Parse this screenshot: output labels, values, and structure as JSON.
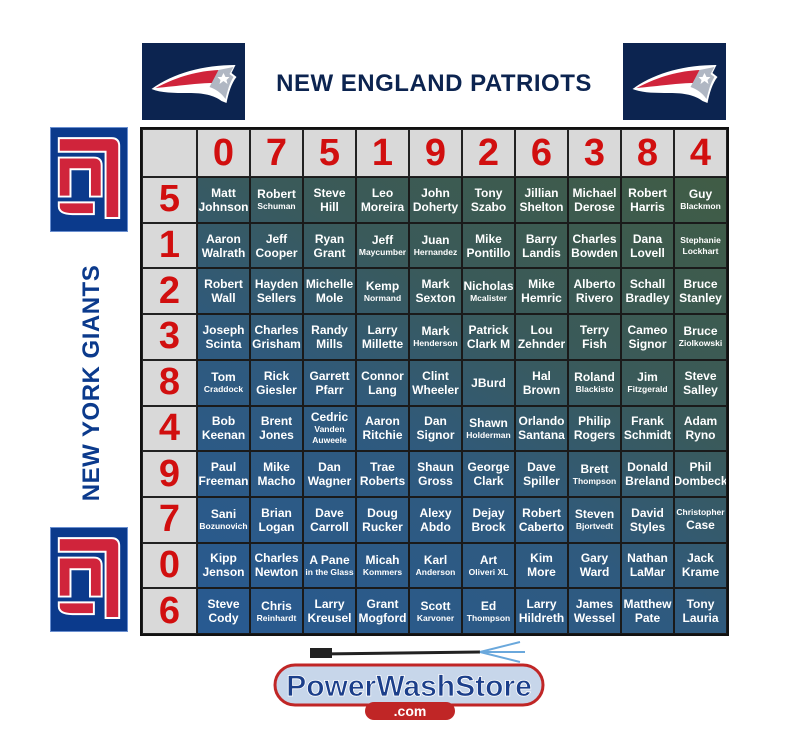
{
  "title": "NEW ENGLAND PATRIOTS",
  "side_title": "NEW YORK GIANTS",
  "logos": {
    "top": "patriots-logo",
    "side": "giants-ny-logo",
    "sponsor": "PowerWashStore",
    "sponsor_sub": ".com"
  },
  "colors": {
    "digits": "#d10f0f",
    "navy": "#0c2450",
    "giants_blue": "#0b3a8c",
    "cell_blue": "#285a92",
    "cell_green": "#405c45"
  },
  "grid": {
    "col_digits": [
      "0",
      "7",
      "5",
      "1",
      "9",
      "2",
      "6",
      "3",
      "8",
      "4"
    ],
    "row_digits": [
      "5",
      "1",
      "2",
      "3",
      "8",
      "4",
      "9",
      "7",
      "0",
      "6"
    ],
    "rows": [
      [
        {
          "lines": [
            "Matt",
            "Johnson"
          ]
        },
        {
          "lines": [
            "Robert",
            "Schuman"
          ],
          "small": [
            1
          ]
        },
        {
          "lines": [
            "Steve",
            "Hill"
          ]
        },
        {
          "lines": [
            "Leo",
            "Moreira"
          ]
        },
        {
          "lines": [
            "John",
            "Doherty"
          ]
        },
        {
          "lines": [
            "Tony",
            "Szabo"
          ]
        },
        {
          "lines": [
            "Jillian",
            "Shelton"
          ]
        },
        {
          "lines": [
            "Michael",
            "Derose"
          ]
        },
        {
          "lines": [
            "Robert",
            "Harris"
          ]
        },
        {
          "lines": [
            "Guy",
            "Blackmon"
          ],
          "small": [
            1
          ]
        }
      ],
      [
        {
          "lines": [
            "Aaron",
            "Walrath"
          ]
        },
        {
          "lines": [
            "Jeff",
            "Cooper"
          ]
        },
        {
          "lines": [
            "Ryan",
            "Grant"
          ]
        },
        {
          "lines": [
            "Jeff",
            "Maycumber"
          ],
          "small": [
            1
          ]
        },
        {
          "lines": [
            "Juan",
            "Hernandez"
          ],
          "small": [
            1
          ]
        },
        {
          "lines": [
            "Mike",
            "Pontillo"
          ]
        },
        {
          "lines": [
            "Barry",
            "Landis"
          ]
        },
        {
          "lines": [
            "Charles",
            "Bowden"
          ]
        },
        {
          "lines": [
            "Dana",
            "Lovell"
          ]
        },
        {
          "lines": [
            "Stephanie",
            "Lockhart"
          ],
          "small": [
            0,
            1
          ]
        }
      ],
      [
        {
          "lines": [
            "Robert",
            "Wall"
          ]
        },
        {
          "lines": [
            "Hayden",
            "Sellers"
          ]
        },
        {
          "lines": [
            "Michelle",
            "Mole"
          ]
        },
        {
          "lines": [
            "Kemp",
            "Normand"
          ],
          "small": [
            1
          ]
        },
        {
          "lines": [
            "Mark",
            "Sexton"
          ]
        },
        {
          "lines": [
            "Nicholas",
            "Mcalister"
          ],
          "small": [
            1
          ]
        },
        {
          "lines": [
            "Mike",
            "Hemric"
          ]
        },
        {
          "lines": [
            "Alberto",
            "Rivero"
          ]
        },
        {
          "lines": [
            "Schall",
            "Bradley"
          ]
        },
        {
          "lines": [
            "Bruce",
            "Stanley"
          ]
        }
      ],
      [
        {
          "lines": [
            "Joseph",
            "Scinta"
          ]
        },
        {
          "lines": [
            "Charles",
            "Grisham"
          ]
        },
        {
          "lines": [
            "Randy",
            "Mills"
          ]
        },
        {
          "lines": [
            "Larry",
            "Millette"
          ]
        },
        {
          "lines": [
            "Mark",
            "Henderson"
          ],
          "small": [
            1
          ]
        },
        {
          "lines": [
            "Patrick",
            "Clark M"
          ]
        },
        {
          "lines": [
            "Lou",
            "Zehnder"
          ]
        },
        {
          "lines": [
            "Terry",
            "Fish"
          ]
        },
        {
          "lines": [
            "Cameo",
            "Signor"
          ]
        },
        {
          "lines": [
            "Bruce",
            "Ziolkowski"
          ],
          "small": [
            1
          ]
        }
      ],
      [
        {
          "lines": [
            "Tom",
            "Craddock"
          ],
          "small": [
            1
          ]
        },
        {
          "lines": [
            "Rick",
            "Giesler"
          ]
        },
        {
          "lines": [
            "Garrett",
            "Pfarr"
          ]
        },
        {
          "lines": [
            "Connor",
            "Lang"
          ]
        },
        {
          "lines": [
            "Clint",
            "Wheeler"
          ]
        },
        {
          "lines": [
            "JBurd"
          ]
        },
        {
          "lines": [
            "Hal",
            "Brown"
          ]
        },
        {
          "lines": [
            "Roland",
            "Blackisto"
          ],
          "small": [
            1
          ]
        },
        {
          "lines": [
            "Jim",
            "Fitzgerald"
          ],
          "small": [
            1
          ]
        },
        {
          "lines": [
            "Steve",
            "Salley"
          ]
        }
      ],
      [
        {
          "lines": [
            "Bob",
            "Keenan"
          ]
        },
        {
          "lines": [
            "Brent",
            "Jones"
          ]
        },
        {
          "lines": [
            "Cedric",
            "Vanden",
            "Auweele"
          ],
          "small": [
            1,
            2
          ]
        },
        {
          "lines": [
            "Aaron",
            "Ritchie"
          ]
        },
        {
          "lines": [
            "Dan",
            "Signor"
          ]
        },
        {
          "lines": [
            "Shawn",
            "Holderman"
          ],
          "small": [
            1
          ]
        },
        {
          "lines": [
            "Orlando",
            "Santana"
          ]
        },
        {
          "lines": [
            "Philip",
            "Rogers"
          ]
        },
        {
          "lines": [
            "Frank",
            "Schmidt"
          ]
        },
        {
          "lines": [
            "Adam",
            "Ryno"
          ]
        }
      ],
      [
        {
          "lines": [
            "Paul",
            "Freeman"
          ]
        },
        {
          "lines": [
            "Mike",
            "Macho"
          ]
        },
        {
          "lines": [
            "Dan",
            "Wagner"
          ]
        },
        {
          "lines": [
            "Trae",
            "Roberts"
          ]
        },
        {
          "lines": [
            "Shaun",
            "Gross"
          ]
        },
        {
          "lines": [
            "George",
            "Clark"
          ]
        },
        {
          "lines": [
            "Dave",
            "Spiller"
          ]
        },
        {
          "lines": [
            "Brett",
            "Thompson"
          ],
          "small": [
            1
          ]
        },
        {
          "lines": [
            "Donald",
            "Breland"
          ]
        },
        {
          "lines": [
            "Phil",
            "Dombeck"
          ]
        }
      ],
      [
        {
          "lines": [
            "Sani",
            "Bozunovich"
          ],
          "small": [
            1
          ]
        },
        {
          "lines": [
            "Brian",
            "Logan"
          ]
        },
        {
          "lines": [
            "Dave",
            "Carroll"
          ]
        },
        {
          "lines": [
            "Doug",
            "Rucker"
          ]
        },
        {
          "lines": [
            "Alexy",
            "Abdo"
          ]
        },
        {
          "lines": [
            "Dejay",
            "Brock"
          ]
        },
        {
          "lines": [
            "Robert",
            "Caberto"
          ]
        },
        {
          "lines": [
            "Steven",
            "Bjortvedt"
          ],
          "small": [
            1
          ]
        },
        {
          "lines": [
            "David",
            "Styles"
          ]
        },
        {
          "lines": [
            "Christopher",
            "Case"
          ],
          "small": [
            0
          ]
        }
      ],
      [
        {
          "lines": [
            "Kipp",
            "Jenson"
          ]
        },
        {
          "lines": [
            "Charles",
            "Newton"
          ]
        },
        {
          "lines": [
            "A Pane",
            "in the Glass"
          ],
          "small": [
            1
          ]
        },
        {
          "lines": [
            "Micah",
            "Kommers"
          ],
          "small": [
            1
          ]
        },
        {
          "lines": [
            "Karl",
            "Anderson"
          ],
          "small": [
            1
          ]
        },
        {
          "lines": [
            "Art",
            "Oliveri XL"
          ],
          "small": [
            1
          ]
        },
        {
          "lines": [
            "Kim",
            "More"
          ]
        },
        {
          "lines": [
            "Gary",
            "Ward"
          ]
        },
        {
          "lines": [
            "Nathan",
            "LaMar"
          ]
        },
        {
          "lines": [
            "Jack",
            "Krame"
          ]
        }
      ],
      [
        {
          "lines": [
            "Steve",
            "Cody"
          ]
        },
        {
          "lines": [
            "Chris",
            "Reinhardt"
          ],
          "small": [
            1
          ]
        },
        {
          "lines": [
            "Larry",
            "Kreusel"
          ]
        },
        {
          "lines": [
            "Grant",
            "Mogford"
          ]
        },
        {
          "lines": [
            "Scott",
            "Karvoner"
          ],
          "small": [
            1
          ]
        },
        {
          "lines": [
            "Ed",
            "Thompson"
          ],
          "small": [
            1
          ]
        },
        {
          "lines": [
            "Larry",
            "Hildreth"
          ]
        },
        {
          "lines": [
            "James",
            "Wessel"
          ]
        },
        {
          "lines": [
            "Matthew",
            "Pate"
          ]
        },
        {
          "lines": [
            "Tony",
            "Lauria"
          ]
        }
      ]
    ]
  }
}
